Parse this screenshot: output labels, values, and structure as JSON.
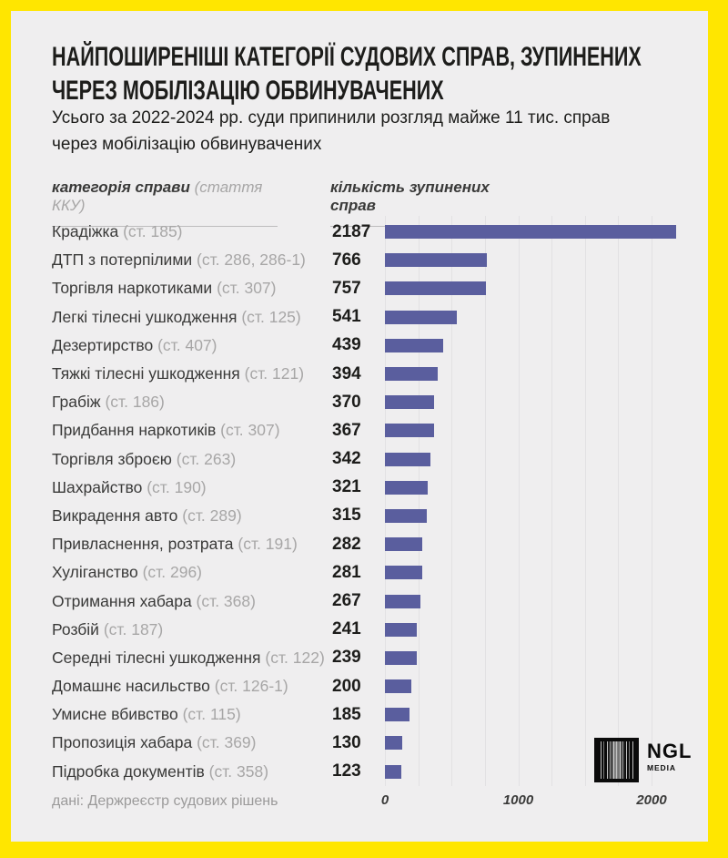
{
  "header": {
    "title": "НАЙПОШИРЕНІШІ КАТЕГОРІЇ СУДОВИХ СПРАВ, ЗУПИНЕНИХ\nЧЕРЕЗ МОБІЛІЗАЦІЮ ОБВИНУВАЧЕНИХ",
    "subtitle": "Усього за 2022-2024 рр. суди припинили розгляд майже 11 тис. справ\nчерез мобілізацію обвинувачених"
  },
  "columns": {
    "left_label": "категорія справи",
    "left_label_suffix": " (стаття ККУ)",
    "right_label": "кількість зупинених справ"
  },
  "chart_data": {
    "type": "bar",
    "orientation": "horizontal",
    "title": "Найпоширеніші категорії судових справ, зупинених через мобілізацію обвинувачених",
    "value_label": "кількість зупинених справ",
    "rows": [
      {
        "category": "Крадіжка",
        "article": "(ст. 185)",
        "value": 2187
      },
      {
        "category": "ДТП з потерпілими",
        "article": "(ст. 286, 286-1)",
        "value": 766
      },
      {
        "category": "Торгівля наркотиками",
        "article": "(ст. 307)",
        "value": 757
      },
      {
        "category": "Легкі тілесні ушкодження",
        "article": "(ст. 125)",
        "value": 541
      },
      {
        "category": "Дезертирство",
        "article": "(ст. 407)",
        "value": 439
      },
      {
        "category": "Тяжкі тілесні ушкодження",
        "article": "(ст. 121)",
        "value": 394
      },
      {
        "category": "Грабіж",
        "article": "(ст. 186)",
        "value": 370
      },
      {
        "category": "Придбання наркотиків",
        "article": "(ст. 307)",
        "value": 367
      },
      {
        "category": "Торгівля зброєю",
        "article": "(ст. 263)",
        "value": 342
      },
      {
        "category": "Шахрайство",
        "article": "(ст. 190)",
        "value": 321
      },
      {
        "category": "Викрадення авто",
        "article": "(ст. 289)",
        "value": 315
      },
      {
        "category": "Привласнення, розтрата",
        "article": "(ст. 191)",
        "value": 282
      },
      {
        "category": "Хуліганство",
        "article": "(ст. 296)",
        "value": 281
      },
      {
        "category": "Отримання хабара",
        "article": "(ст. 368)",
        "value": 267
      },
      {
        "category": "Розбій",
        "article": "(ст. 187)",
        "value": 241
      },
      {
        "category": "Середні тілесні ушкодження",
        "article": "(ст. 122)",
        "value": 239
      },
      {
        "category": "Домашнє насильство",
        "article": "(ст. 126-1)",
        "value": 200
      },
      {
        "category": "Умисне вбивство",
        "article": "(ст. 115)",
        "value": 185
      },
      {
        "category": "Пропозиція хабара",
        "article": "(ст. 369)",
        "value": 130
      },
      {
        "category": "Підробка документів",
        "article": "(ст. 358)",
        "value": 123
      }
    ],
    "xticks": [
      0,
      1000,
      2000
    ],
    "xmax": 2300,
    "gridline_step": 250,
    "grid": true,
    "bar_color": "#5A5E9E"
  },
  "footer": {
    "source": "дані: Держреєстр судових рішень"
  },
  "logo": {
    "name": "NGL",
    "sub": "MEDIA"
  },
  "colors": {
    "frame_yellow": "#FFE600",
    "card_background": "#EFEEEF",
    "bar": "#5A5E9E",
    "gridline": "#E2E1E3",
    "text_dark": "#1D1D1B",
    "text_muted": "#A7A6A6"
  }
}
